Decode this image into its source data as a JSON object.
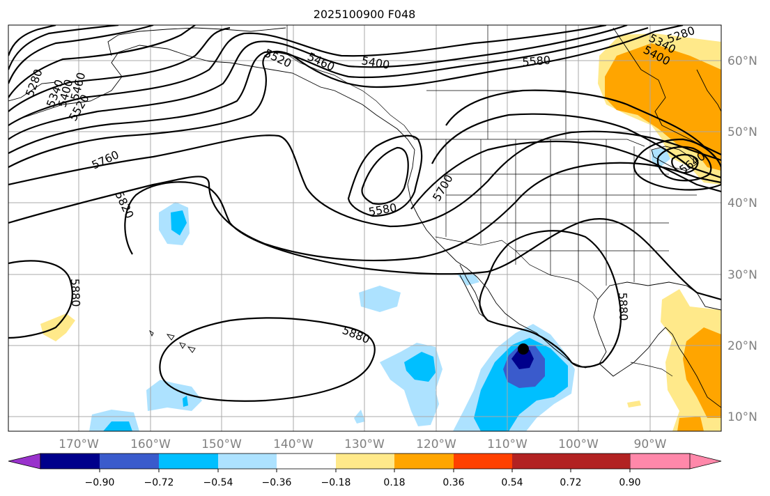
{
  "title": "2025100900 F048",
  "lon_labels": [
    "170°W",
    "160°W",
    "150°W",
    "140°W",
    "130°W",
    "120°W",
    "110°W",
    "100°W",
    "90°W"
  ],
  "lat_labels": [
    "60°N",
    "50°N",
    "40°N",
    "30°N",
    "20°N",
    "10°N"
  ],
  "colorbar": {
    "tick_labels": [
      "−0.90",
      "−0.72",
      "−0.54",
      "−0.36",
      "−0.18",
      "0.18",
      "0.36",
      "0.54",
      "0.72",
      "0.90"
    ],
    "colors": [
      "#9932CC",
      "#00008B",
      "#3A5BCC",
      "#00BFFF",
      "#ADE2FF",
      "#FFFFFF",
      "#FFE98A",
      "#FFA500",
      "#FF4000",
      "#B22222",
      "#FF88AA"
    ]
  },
  "contour_labels": [
    "5280",
    "5340",
    "5400",
    "5460",
    "5520",
    "5400",
    "5460",
    "5520",
    "5580",
    "5400",
    "5340",
    "5280",
    "5640",
    "5760",
    "5820",
    "5700",
    "5580",
    "5880",
    "5880",
    "5880"
  ],
  "marker": {
    "lon": -108,
    "lat": 19.5,
    "color": "#000000"
  }
}
